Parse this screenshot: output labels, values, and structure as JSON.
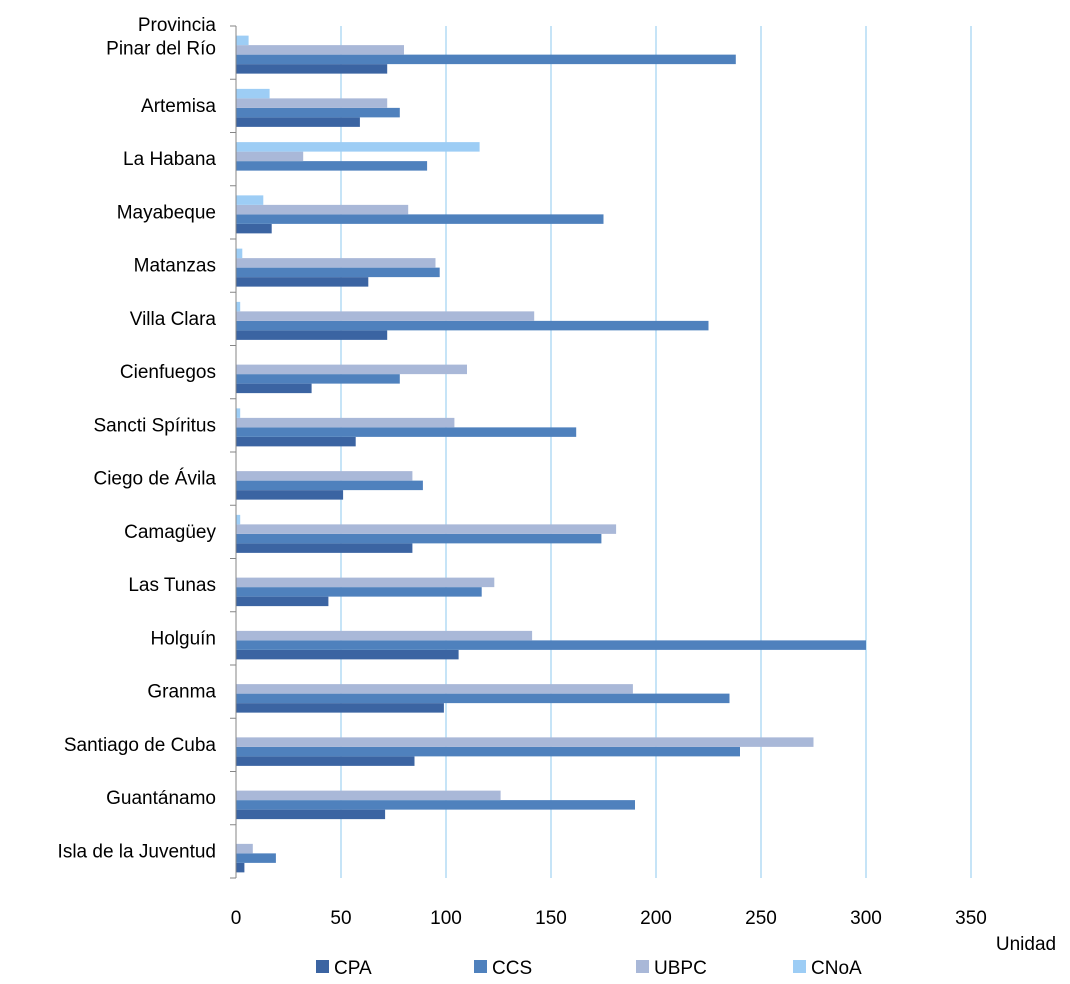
{
  "chart_data": {
    "type": "bar",
    "orientation": "horizontal",
    "category_axis_title": "Provincia",
    "value_axis_title": "Unidad",
    "categories": [
      "Pinar del Río",
      "Artemisa",
      "La Habana",
      "Mayabeque",
      "Matanzas",
      "Villa Clara",
      "Cienfuegos",
      "Sancti Spíritus",
      "Ciego de Ávila",
      "Camagüey",
      "Las Tunas",
      "Holguín",
      "Granma",
      "Santiago de Cuba",
      "Guantánamo",
      "Isla de la Juventud"
    ],
    "series": [
      {
        "name": "CPA",
        "color": "#3b64a2",
        "values": [
          72,
          59,
          0,
          17,
          63,
          72,
          36,
          57,
          51,
          84,
          44,
          106,
          99,
          85,
          71,
          4
        ]
      },
      {
        "name": "CCS",
        "color": "#4f81bd",
        "values": [
          238,
          78,
          91,
          175,
          97,
          225,
          78,
          162,
          89,
          174,
          117,
          300,
          235,
          240,
          190,
          19
        ]
      },
      {
        "name": "UBPC",
        "color": "#a9b8d8",
        "values": [
          80,
          72,
          32,
          82,
          95,
          142,
          110,
          104,
          84,
          181,
          123,
          141,
          189,
          275,
          126,
          8
        ]
      },
      {
        "name": "CNoA",
        "color": "#9dcdf5",
        "values": [
          6,
          16,
          116,
          13,
          3,
          2,
          0,
          2,
          0,
          2,
          0,
          0,
          0,
          0,
          0,
          0
        ]
      }
    ],
    "xlim": [
      0,
      350
    ],
    "x_ticks": [
      0,
      50,
      100,
      150,
      200,
      250,
      300,
      350
    ],
    "x_tick_labels": [
      "0",
      "50",
      "100",
      "150",
      "200",
      "250",
      "300",
      "350"
    ],
    "grid": "vertical",
    "legend_position": "bottom"
  }
}
